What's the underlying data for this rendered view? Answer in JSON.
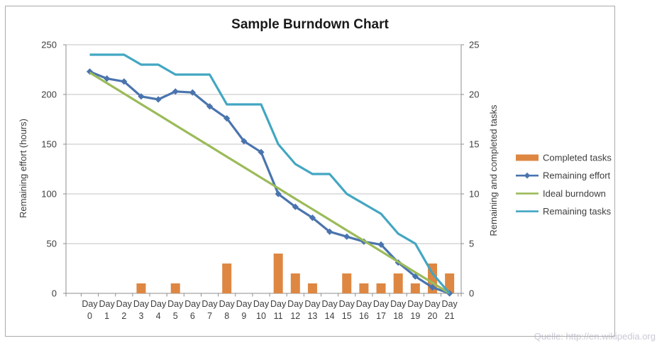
{
  "source_note": "Quelle: http://en.wikipedia.org",
  "chart_data": {
    "type": "combo-bar-line",
    "title": "Sample Burndown Chart",
    "categories": [
      "Day 0",
      "Day 1",
      "Day 2",
      "Day 3",
      "Day 4",
      "Day 5",
      "Day 6",
      "Day 7",
      "Day 8",
      "Day 9",
      "Day 10",
      "Day 11",
      "Day 12",
      "Day 13",
      "Day 14",
      "Day 15",
      "Day 16",
      "Day 17",
      "Day 18",
      "Day 19",
      "Day 20",
      "Day 21"
    ],
    "series": [
      {
        "name": "Completed tasks",
        "type": "bar",
        "axis": "right",
        "color": "#de8742",
        "values": [
          0,
          0,
          0,
          1,
          0,
          1,
          0,
          0,
          3,
          0,
          0,
          4,
          2,
          1,
          0,
          2,
          1,
          1,
          2,
          1,
          3,
          2
        ]
      },
      {
        "name": "Remaining effort",
        "type": "line",
        "marker": "diamond",
        "axis": "left",
        "color": "#4a74ae",
        "values": [
          223,
          216,
          213,
          198,
          195,
          203,
          202,
          188,
          176,
          153,
          142,
          100,
          87,
          76,
          62,
          57,
          52,
          49,
          31,
          17,
          6,
          0
        ]
      },
      {
        "name": "Ideal burndown",
        "type": "line",
        "marker": "none",
        "axis": "left",
        "color": "#9bbb59",
        "values": [
          222,
          211.4,
          200.9,
          190.3,
          179.7,
          169.1,
          158.6,
          148,
          137.4,
          126.9,
          116.3,
          105.7,
          95.1,
          84.6,
          74,
          63.4,
          52.9,
          42.3,
          31.7,
          21.1,
          10.6,
          0
        ]
      },
      {
        "name": "Remaining tasks",
        "type": "line",
        "marker": "none",
        "axis": "right",
        "color": "#42a6c2",
        "values": [
          24,
          24,
          24,
          23,
          23,
          22,
          22,
          22,
          19,
          19,
          19,
          15,
          13,
          12,
          12,
          10,
          9,
          8,
          6,
          5,
          2,
          0
        ]
      }
    ],
    "left_axis": {
      "title": "Remaining effort (hours)",
      "min": 0,
      "max": 250,
      "step": 50,
      "ticks": [
        0,
        50,
        100,
        150,
        200,
        250
      ]
    },
    "right_axis": {
      "title": "Remaining and  completed tasks",
      "min": 0,
      "max": 25,
      "step": 5,
      "ticks": [
        0,
        5,
        10,
        15,
        20,
        25
      ]
    },
    "x_axis": {
      "label_word": "Day",
      "numbers": [
        "0",
        "1",
        "2",
        "3",
        "4",
        "5",
        "6",
        "7",
        "8",
        "9",
        "10",
        "11",
        "12",
        "13",
        "14",
        "15",
        "16",
        "17",
        "18",
        "19",
        "20",
        "21"
      ]
    },
    "legend_position": "right",
    "grid": true,
    "colors": {
      "gridline": "#c3c3c3",
      "axis_line": "#8e8e8e",
      "frame_border": "#ababab",
      "background": "#ffffff"
    }
  }
}
